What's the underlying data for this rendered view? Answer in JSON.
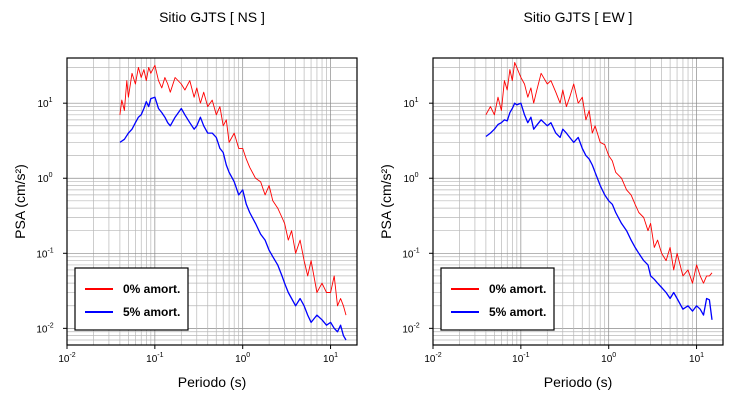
{
  "chart_data": [
    {
      "type": "line",
      "title": "Sitio GJTS [ NS ]",
      "xlabel": "Periodo (s)",
      "ylabel": "PSA (cm/s²)",
      "xscale": "log",
      "yscale": "log",
      "xlim": [
        0.01,
        20
      ],
      "ylim": [
        0.006,
        40
      ],
      "x_ticks": [
        {
          "base": "10",
          "exp": "-2"
        },
        {
          "base": "10",
          "exp": "-1"
        },
        {
          "base": "10",
          "exp": "0"
        },
        {
          "base": "10",
          "exp": "1"
        }
      ],
      "y_ticks": [
        {
          "base": "10",
          "exp": "-2"
        },
        {
          "base": "10",
          "exp": "-1"
        },
        {
          "base": "10",
          "exp": "0"
        },
        {
          "base": "10",
          "exp": "1"
        }
      ],
      "grid": true,
      "legend_position": "bottom-left",
      "series": [
        {
          "name": "0% amort.",
          "color": "#ff0000",
          "x": [
            0.04,
            0.042,
            0.045,
            0.048,
            0.05,
            0.055,
            0.06,
            0.065,
            0.07,
            0.075,
            0.08,
            0.085,
            0.09,
            0.1,
            0.11,
            0.12,
            0.13,
            0.14,
            0.15,
            0.17,
            0.2,
            0.22,
            0.25,
            0.28,
            0.3,
            0.33,
            0.36,
            0.4,
            0.45,
            0.5,
            0.55,
            0.6,
            0.65,
            0.7,
            0.8,
            0.9,
            1.0,
            1.1,
            1.2,
            1.4,
            1.6,
            1.8,
            2.0,
            2.2,
            2.5,
            2.8,
            3.0,
            3.3,
            3.6,
            4.0,
            4.5,
            5.0,
            5.5,
            6.0,
            7.0,
            8.0,
            9.0,
            10.0,
            11.0,
            12.0,
            13.0,
            14.0,
            15.0
          ],
          "y": [
            7,
            11,
            8,
            20,
            12,
            25,
            18,
            30,
            22,
            28,
            20,
            30,
            25,
            32,
            20,
            16,
            22,
            18,
            14,
            22,
            18,
            15,
            20,
            12,
            16,
            10,
            14,
            9,
            11,
            7,
            9,
            5,
            6,
            3,
            4,
            2.5,
            2.5,
            1.8,
            1.4,
            1.0,
            0.9,
            0.6,
            0.8,
            0.5,
            0.4,
            0.3,
            0.25,
            0.15,
            0.2,
            0.1,
            0.15,
            0.08,
            0.05,
            0.08,
            0.03,
            0.04,
            0.03,
            0.03,
            0.05,
            0.02,
            0.025,
            0.02,
            0.015
          ]
        },
        {
          "name": "5% amort.",
          "color": "#0000ff",
          "x": [
            0.04,
            0.045,
            0.05,
            0.055,
            0.06,
            0.065,
            0.07,
            0.075,
            0.08,
            0.085,
            0.09,
            0.1,
            0.11,
            0.12,
            0.13,
            0.14,
            0.15,
            0.17,
            0.2,
            0.22,
            0.25,
            0.28,
            0.3,
            0.33,
            0.36,
            0.4,
            0.45,
            0.5,
            0.55,
            0.6,
            0.65,
            0.7,
            0.8,
            0.9,
            1.0,
            1.1,
            1.2,
            1.4,
            1.6,
            1.8,
            2.0,
            2.2,
            2.5,
            2.8,
            3.0,
            3.3,
            3.6,
            4.0,
            4.5,
            5.0,
            5.5,
            6.0,
            7.0,
            8.0,
            9.0,
            10.0,
            11.0,
            12.0,
            13.0,
            14.0,
            15.0
          ],
          "y": [
            3,
            3.3,
            4.0,
            4.5,
            5.5,
            6.5,
            7.0,
            8.5,
            10.5,
            9.0,
            11.5,
            12,
            8.5,
            7.5,
            6.5,
            5.5,
            5.0,
            6.5,
            8.5,
            7.0,
            5.5,
            4.5,
            5.0,
            6.5,
            5.0,
            4.0,
            4.0,
            3.5,
            2.5,
            2.2,
            1.5,
            1.2,
            0.9,
            0.6,
            0.7,
            0.45,
            0.35,
            0.25,
            0.18,
            0.15,
            0.11,
            0.09,
            0.07,
            0.05,
            0.04,
            0.03,
            0.025,
            0.02,
            0.025,
            0.02,
            0.015,
            0.012,
            0.015,
            0.013,
            0.011,
            0.012,
            0.01,
            0.009,
            0.011,
            0.008,
            0.007
          ]
        }
      ]
    },
    {
      "type": "line",
      "title": "Sitio GJTS [ EW ]",
      "xlabel": "Periodo (s)",
      "ylabel": "PSA (cm/s²)",
      "xscale": "log",
      "yscale": "log",
      "xlim": [
        0.01,
        20
      ],
      "ylim": [
        0.006,
        40
      ],
      "x_ticks": [
        {
          "base": "10",
          "exp": "-2"
        },
        {
          "base": "10",
          "exp": "-1"
        },
        {
          "base": "10",
          "exp": "0"
        },
        {
          "base": "10",
          "exp": "1"
        }
      ],
      "y_ticks": [
        {
          "base": "10",
          "exp": "-2"
        },
        {
          "base": "10",
          "exp": "-1"
        },
        {
          "base": "10",
          "exp": "0"
        },
        {
          "base": "10",
          "exp": "1"
        }
      ],
      "grid": true,
      "legend_position": "bottom-left",
      "series": [
        {
          "name": "0% amort.",
          "color": "#ff0000",
          "x": [
            0.04,
            0.045,
            0.05,
            0.055,
            0.06,
            0.065,
            0.07,
            0.075,
            0.08,
            0.085,
            0.09,
            0.1,
            0.11,
            0.12,
            0.13,
            0.14,
            0.15,
            0.17,
            0.2,
            0.22,
            0.25,
            0.28,
            0.3,
            0.33,
            0.36,
            0.4,
            0.45,
            0.5,
            0.55,
            0.6,
            0.65,
            0.7,
            0.8,
            0.9,
            1.0,
            1.1,
            1.2,
            1.4,
            1.6,
            1.8,
            2.0,
            2.2,
            2.5,
            2.8,
            3.0,
            3.3,
            3.6,
            4.0,
            4.5,
            5.0,
            5.5,
            6.0,
            7.0,
            8.0,
            9.0,
            10.0,
            11.0,
            12.0,
            13.0,
            14.0,
            15.0
          ],
          "y": [
            7,
            9,
            7,
            12,
            8,
            20,
            15,
            28,
            20,
            35,
            30,
            22,
            18,
            12,
            16,
            10,
            14,
            25,
            18,
            20,
            14,
            10,
            15,
            9,
            12,
            18,
            10,
            12,
            6,
            8,
            4,
            5,
            3,
            2.8,
            2.0,
            1.7,
            1.2,
            1.0,
            0.7,
            0.6,
            0.45,
            0.35,
            0.3,
            0.2,
            0.25,
            0.12,
            0.15,
            0.1,
            0.08,
            0.12,
            0.06,
            0.1,
            0.05,
            0.06,
            0.04,
            0.07,
            0.05,
            0.04,
            0.05,
            0.05,
            0.055
          ]
        },
        {
          "name": "5% amort.",
          "color": "#0000ff",
          "x": [
            0.04,
            0.045,
            0.05,
            0.055,
            0.06,
            0.065,
            0.07,
            0.075,
            0.08,
            0.085,
            0.09,
            0.1,
            0.11,
            0.12,
            0.13,
            0.14,
            0.15,
            0.17,
            0.2,
            0.22,
            0.25,
            0.28,
            0.3,
            0.33,
            0.36,
            0.4,
            0.45,
            0.5,
            0.55,
            0.6,
            0.65,
            0.7,
            0.8,
            0.9,
            1.0,
            1.1,
            1.2,
            1.4,
            1.6,
            1.8,
            2.0,
            2.2,
            2.5,
            2.8,
            3.0,
            3.3,
            3.6,
            4.0,
            4.5,
            5.0,
            5.5,
            6.0,
            7.0,
            8.0,
            9.0,
            10.0,
            11.0,
            12.0,
            13.0,
            14.0,
            15.0
          ],
          "y": [
            3.6,
            4.0,
            4.5,
            5.2,
            5.5,
            6.0,
            5.8,
            7.5,
            8.5,
            10,
            9.5,
            10,
            7.0,
            5.5,
            6.5,
            4.5,
            5.0,
            6.0,
            5.0,
            5.5,
            4.0,
            3.5,
            4.5,
            4.0,
            3.5,
            3.0,
            3.5,
            2.5,
            2.0,
            1.8,
            1.5,
            1.2,
            0.8,
            0.6,
            0.5,
            0.45,
            0.35,
            0.25,
            0.2,
            0.15,
            0.12,
            0.1,
            0.08,
            0.07,
            0.05,
            0.045,
            0.04,
            0.035,
            0.03,
            0.025,
            0.03,
            0.025,
            0.018,
            0.02,
            0.017,
            0.02,
            0.018,
            0.015,
            0.025,
            0.024,
            0.013
          ]
        }
      ]
    }
  ]
}
